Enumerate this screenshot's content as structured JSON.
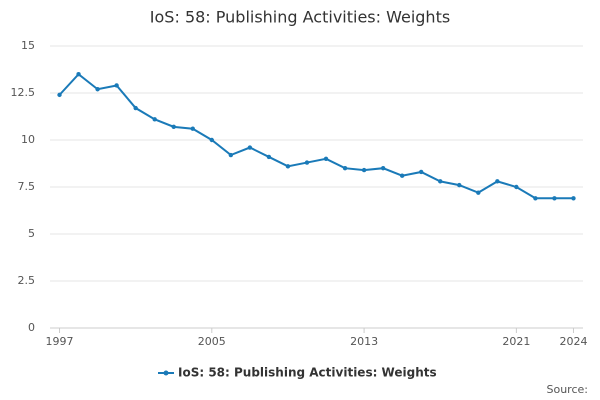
{
  "chart_data": {
    "type": "line",
    "title": "IoS: 58: Publishing Activities: Weights",
    "x": [
      1997,
      1998,
      1999,
      2000,
      2001,
      2002,
      2003,
      2004,
      2005,
      2006,
      2007,
      2008,
      2009,
      2010,
      2011,
      2012,
      2013,
      2014,
      2015,
      2016,
      2017,
      2018,
      2019,
      2020,
      2021,
      2022,
      2023,
      2024
    ],
    "series": [
      {
        "name": "IoS: 58: Publishing Activities: Weights",
        "color": "#1a7ab8",
        "values": [
          12.4,
          13.5,
          12.7,
          12.9,
          11.7,
          11.1,
          10.7,
          10.6,
          10.0,
          9.2,
          9.6,
          9.1,
          8.6,
          8.8,
          9.0,
          8.5,
          8.4,
          8.5,
          8.1,
          8.3,
          7.8,
          7.6,
          7.2,
          7.8,
          7.5,
          6.9,
          6.9,
          6.9
        ]
      }
    ],
    "xlim": [
      1996.5,
      2024.5
    ],
    "xticks": [
      1997,
      2005,
      2013,
      2021,
      2024
    ],
    "ylim": [
      0,
      15
    ],
    "yticks": [
      0,
      2.5,
      5,
      7.5,
      10,
      12.5,
      15
    ],
    "grid": true,
    "source": "Source:"
  }
}
